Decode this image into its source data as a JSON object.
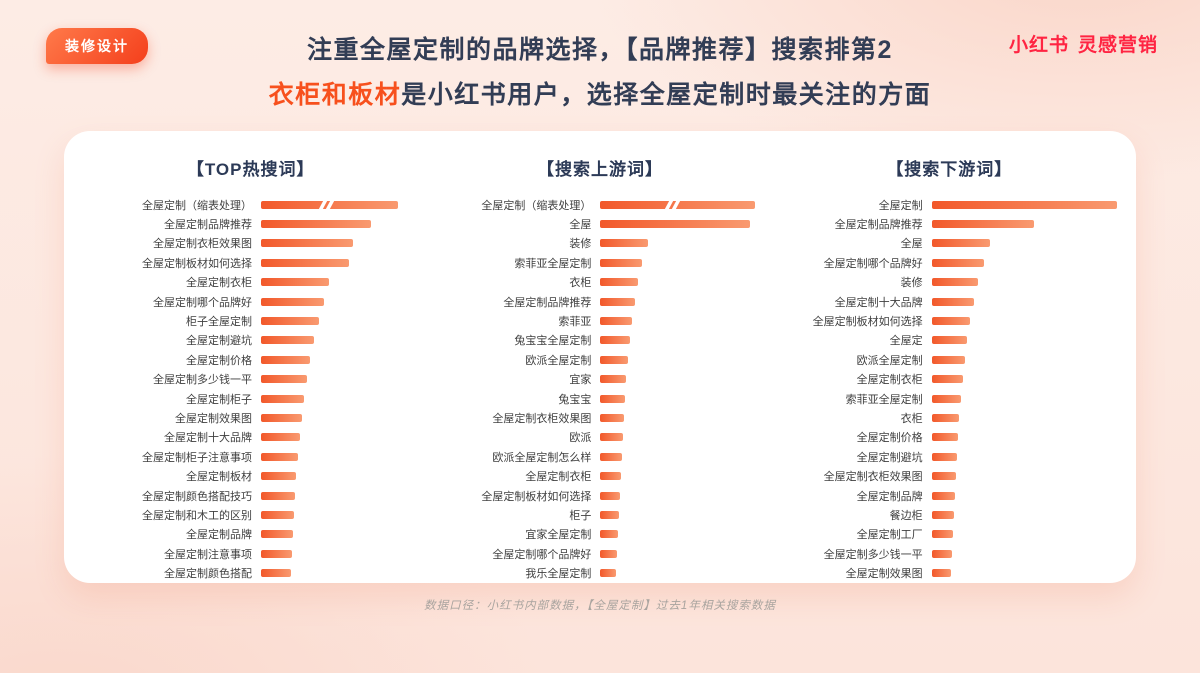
{
  "badge": {
    "label": "装修设计"
  },
  "logo": {
    "brand": "小红书",
    "suffix": "灵感营销"
  },
  "title": {
    "line1": "注重全屋定制的品牌选择，【品牌推荐】搜索排第2",
    "line2_highlight": "衣柜和板材",
    "line2_rest": "是小红书用户，选择全屋定制时最关注的方面"
  },
  "footer": {
    "caption": "数据口径：小红书内部数据，【全屋定制】过去1年相关搜索数据"
  },
  "colors": {
    "accent_orange": "#f7501d",
    "title_navy": "#323d55",
    "brand_red": "#ff2442",
    "bar_gradient_start": "#f2582a",
    "bar_gradient_end": "#f99a70",
    "card_bg": "#ffffff"
  },
  "chart_data": [
    {
      "type": "bar",
      "orientation": "horizontal",
      "title": "【TOP热搜词】",
      "grid": false,
      "value_labels": false,
      "truncated_first_bar": true,
      "categories": [
        "全屋定制（缩表处理）",
        "全屋定制品牌推荐",
        "全屋定制衣柜效果图",
        "全屋定制板材如何选择",
        "全屋定制衣柜",
        "全屋定制哪个品牌好",
        "柜子全屋定制",
        "全屋定制避坑",
        "全屋定制价格",
        "全屋定制多少钱一平",
        "全屋定制柜子",
        "全屋定制效果图",
        "全屋定制十大品牌",
        "全屋定制柜子注意事项",
        "全屋定制板材",
        "全屋定制颜色搭配技巧",
        "全屋定制和木工的区别",
        "全屋定制品牌",
        "全屋定制注意事项",
        "全屋定制颜色搭配"
      ],
      "values": [
        137,
        110,
        92,
        88,
        68,
        63,
        58,
        53,
        49,
        46,
        43,
        41,
        39,
        37,
        35,
        34,
        33,
        32,
        31,
        30
      ]
    },
    {
      "type": "bar",
      "orientation": "horizontal",
      "title": "【搜索上游词】",
      "grid": false,
      "value_labels": false,
      "truncated_first_bar": true,
      "categories": [
        "全屋定制（缩表处理）",
        "全屋",
        "装修",
        "索菲亚全屋定制",
        "衣柜",
        "全屋定制品牌推荐",
        "索菲亚",
        "兔宝宝全屋定制",
        "欧派全屋定制",
        "宜家",
        "兔宝宝",
        "全屋定制衣柜效果图",
        "欧派",
        "欧派全屋定制怎么样",
        "全屋定制衣柜",
        "全屋定制板材如何选择",
        "柜子",
        "宜家全屋定制",
        "全屋定制哪个品牌好",
        "我乐全屋定制"
      ],
      "values": [
        155,
        150,
        48,
        42,
        38,
        35,
        32,
        30,
        28,
        26,
        25,
        24,
        23,
        22,
        21,
        20,
        19,
        18,
        17,
        16
      ]
    },
    {
      "type": "bar",
      "orientation": "horizontal",
      "title": "【搜索下游词】",
      "grid": false,
      "value_labels": false,
      "truncated_first_bar": false,
      "categories": [
        "全屋定制",
        "全屋定制品牌推荐",
        "全屋",
        "全屋定制哪个品牌好",
        "装修",
        "全屋定制十大品牌",
        "全屋定制板材如何选择",
        "全屋定",
        "欧派全屋定制",
        "全屋定制衣柜",
        "索菲亚全屋定制",
        "衣柜",
        "全屋定制价格",
        "全屋定制避坑",
        "全屋定制衣柜效果图",
        "全屋定制品牌",
        "餐边柜",
        "全屋定制工厂",
        "全屋定制多少钱一平",
        "全屋定制效果图"
      ],
      "values": [
        185,
        102,
        58,
        52,
        46,
        42,
        38,
        35,
        33,
        31,
        29,
        27,
        26,
        25,
        24,
        23,
        22,
        21,
        20,
        19
      ]
    }
  ]
}
